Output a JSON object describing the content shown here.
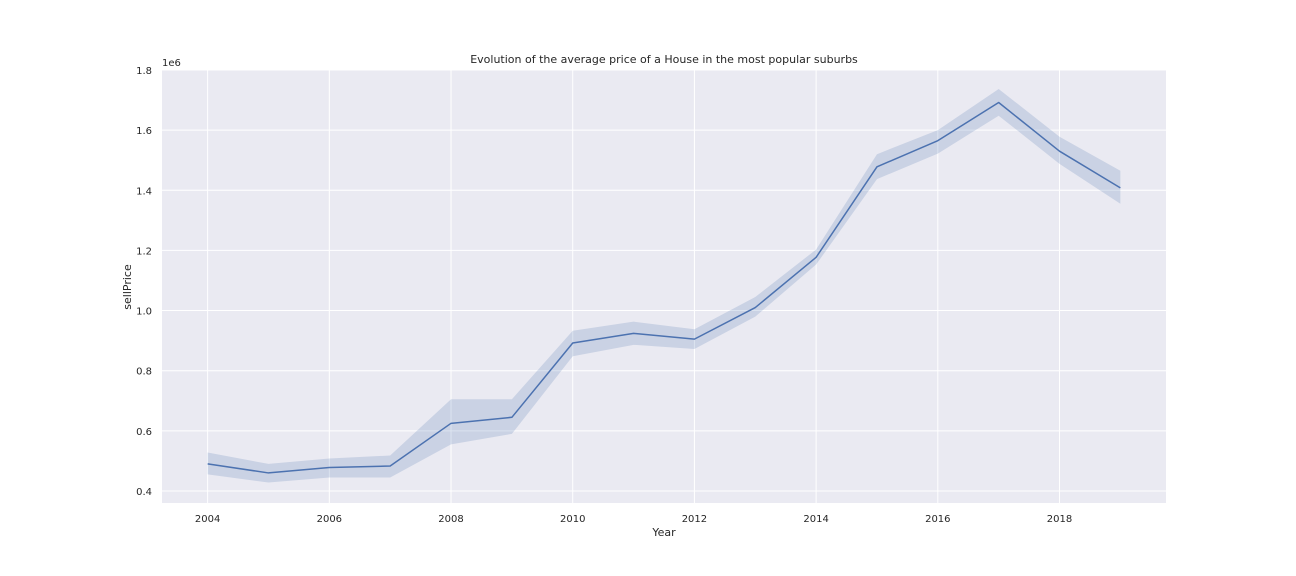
{
  "chart_data": {
    "type": "line",
    "title": "Evolution of the average price of a House in the most popular suburbs",
    "xlabel": "Year",
    "ylabel": "sellPrice",
    "y_offset_label": "1e6",
    "xlim": [
      2003.25,
      2019.75
    ],
    "ylim": [
      0.36,
      1.8
    ],
    "x_ticks": [
      2004,
      2006,
      2008,
      2010,
      2012,
      2014,
      2016,
      2018
    ],
    "x_tick_labels": [
      "2004",
      "2006",
      "2008",
      "2010",
      "2012",
      "2014",
      "2016",
      "2018"
    ],
    "y_ticks": [
      0.4,
      0.6,
      0.8,
      1.0,
      1.2,
      1.4,
      1.6,
      1.8
    ],
    "y_tick_labels": [
      "0.4",
      "0.6",
      "0.8",
      "1.0",
      "1.2",
      "1.4",
      "1.6",
      "1.8"
    ],
    "grid": true,
    "colors": {
      "background": "#eaeaf2",
      "grid": "#ffffff",
      "line": "#4c72b0",
      "band": "#4c72b0"
    },
    "series": [
      {
        "x": [
          2004,
          2005,
          2006,
          2007,
          2008,
          2009,
          2010,
          2011,
          2012,
          2013,
          2014,
          2015,
          2016,
          2017,
          2018,
          2019
        ],
        "y": [
          0.49,
          0.46,
          0.478,
          0.483,
          0.625,
          0.645,
          0.892,
          0.924,
          0.905,
          1.01,
          1.177,
          1.478,
          1.565,
          1.692,
          1.53,
          1.408
        ],
        "ci_lower": [
          0.455,
          0.428,
          0.445,
          0.445,
          0.555,
          0.59,
          0.848,
          0.886,
          0.872,
          0.98,
          1.153,
          1.437,
          1.522,
          1.648,
          1.488,
          1.355
        ],
        "ci_upper": [
          0.528,
          0.49,
          0.508,
          0.518,
          0.705,
          0.705,
          0.933,
          0.963,
          0.938,
          1.045,
          1.203,
          1.52,
          1.6,
          1.737,
          1.578,
          1.465
        ]
      }
    ]
  }
}
